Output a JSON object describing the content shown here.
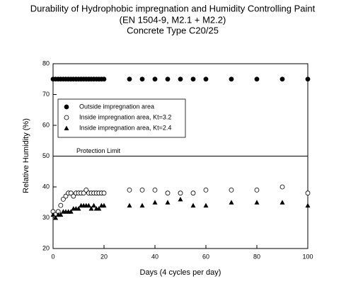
{
  "chart_data": {
    "type": "scatter",
    "title": "Durability of Hydrophobic impregnation and Humidity Controlling Paint",
    "subtitle": "(EN 1504-9, M2.1 + M2.2)",
    "subtitle2": "Concrete Type C20/25",
    "xlabel": "Days (4 cycles per day)",
    "ylabel": "Relative Humidity (%)",
    "xlim": [
      0,
      100
    ],
    "xticks": [
      0,
      20,
      40,
      60,
      80,
      100
    ],
    "ylim": [
      20,
      80
    ],
    "yticks": [
      20,
      30,
      40,
      50,
      60,
      70,
      80
    ],
    "limit": {
      "value": 50,
      "label": "Protection Limit"
    },
    "series": [
      {
        "name": "Outside impregnation area",
        "color": "#000000",
        "marker": "filled-circle",
        "x": [
          0,
          1,
          2,
          3,
          4,
          5,
          6,
          7,
          8,
          9,
          10,
          11,
          12,
          13,
          14,
          15,
          16,
          17,
          18,
          19,
          20,
          30,
          35,
          40,
          45,
          50,
          55,
          60,
          70,
          80,
          90,
          100
        ],
        "values": [
          75,
          75,
          75,
          75,
          75,
          75,
          75,
          75,
          75,
          75,
          75,
          75,
          75,
          75,
          75,
          75,
          75,
          75,
          75,
          75,
          75,
          75,
          75,
          75,
          75,
          75,
          75,
          75,
          75,
          75,
          75,
          75
        ]
      },
      {
        "name": "Inside impregnation area, Kt=3.2",
        "color": "#000000",
        "marker": "open-circle",
        "x": [
          0,
          1,
          2,
          3,
          4,
          5,
          6,
          7,
          8,
          9,
          10,
          11,
          12,
          13,
          14,
          15,
          16,
          17,
          18,
          19,
          20,
          30,
          35,
          40,
          45,
          50,
          55,
          60,
          70,
          80,
          90,
          100
        ],
        "values": [
          32,
          31,
          32,
          34,
          36,
          37,
          38,
          38,
          37,
          38,
          38,
          38,
          38,
          39,
          38,
          38,
          38,
          38,
          38,
          38,
          38,
          39,
          39,
          39,
          38,
          38,
          38,
          39,
          39,
          39,
          40,
          38
        ]
      },
      {
        "name": "Inside impregnation area, Kt=2.4",
        "color": "#000000",
        "marker": "triangle",
        "x": [
          0,
          1,
          2,
          3,
          4,
          5,
          6,
          7,
          8,
          9,
          10,
          11,
          12,
          13,
          14,
          15,
          16,
          17,
          18,
          19,
          20,
          30,
          35,
          40,
          45,
          50,
          55,
          60,
          70,
          80,
          90,
          100
        ],
        "values": [
          31,
          30,
          31,
          31,
          32,
          32,
          32,
          32,
          33,
          33,
          33,
          34,
          34,
          34,
          34,
          33,
          34,
          33,
          33,
          34,
          34,
          34,
          34,
          35,
          35,
          36,
          34,
          34,
          35,
          35,
          35,
          34
        ]
      }
    ]
  }
}
